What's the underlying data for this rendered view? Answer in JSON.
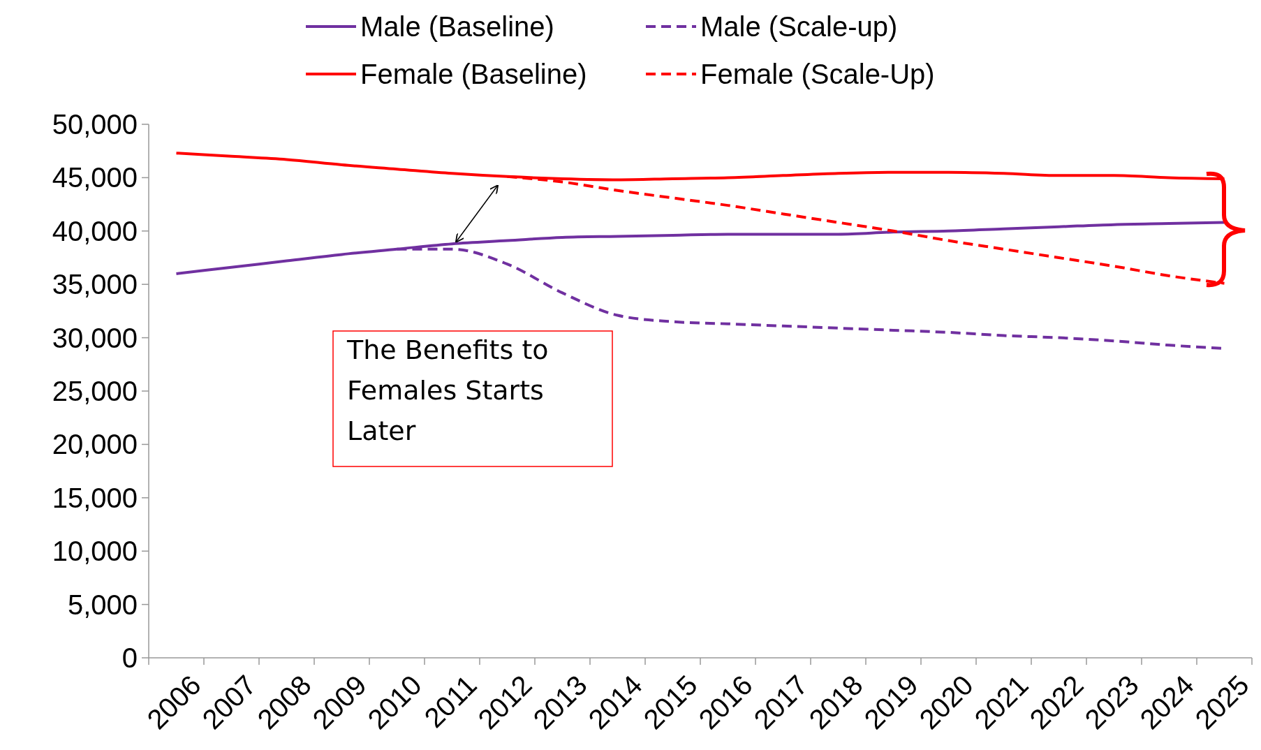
{
  "chart_data": {
    "type": "line",
    "categories": [
      "2006",
      "2007",
      "2008",
      "2009",
      "2010",
      "2011",
      "2012",
      "2013",
      "2014",
      "2015",
      "2016",
      "2017",
      "2018",
      "2019",
      "2020",
      "2021",
      "2022",
      "2023",
      "2024",
      "2025"
    ],
    "series": [
      {
        "name": "Male (Baseline)",
        "color": "#7030a0",
        "line_style": "solid",
        "values": [
          36000,
          36600,
          37200,
          37800,
          38300,
          38800,
          39100,
          39400,
          39500,
          39600,
          39700,
          39700,
          39700,
          39900,
          40000,
          40200,
          40400,
          40600,
          40700,
          40800
        ]
      },
      {
        "name": "Male (Scale-up)",
        "color": "#7030a0",
        "line_style": "dashed",
        "values": [
          null,
          null,
          null,
          null,
          38300,
          38300,
          36900,
          34200,
          32100,
          31500,
          31300,
          31100,
          30900,
          30700,
          30500,
          30200,
          30000,
          29700,
          29300,
          29000
        ]
      },
      {
        "name": "Female (Baseline)",
        "color": "#ff0000",
        "line_style": "solid",
        "values": [
          47300,
          47000,
          46700,
          46200,
          45800,
          45400,
          45100,
          44900,
          44800,
          44900,
          45000,
          45200,
          45400,
          45500,
          45500,
          45400,
          45200,
          45200,
          45000,
          44900
        ]
      },
      {
        "name": "Female (Scale-Up)",
        "color": "#ff0000",
        "line_style": "dashed",
        "values": [
          null,
          null,
          null,
          null,
          null,
          null,
          45100,
          44600,
          43800,
          43100,
          42400,
          41600,
          40800,
          40000,
          39100,
          38300,
          37500,
          36700,
          35800,
          35100
        ]
      }
    ],
    "ylim": [
      0,
      50000
    ],
    "yticks": [
      {
        "value": 0,
        "label": "0"
      },
      {
        "value": 5000,
        "label": "5,000"
      },
      {
        "value": 10000,
        "label": "10,000"
      },
      {
        "value": 15000,
        "label": "15,000"
      },
      {
        "value": 20000,
        "label": "20,000"
      },
      {
        "value": 25000,
        "label": "25,000"
      },
      {
        "value": 30000,
        "label": "30,000"
      },
      {
        "value": 35000,
        "label": "35,000"
      },
      {
        "value": 40000,
        "label": "40,000"
      },
      {
        "value": 45000,
        "label": "45,000"
      },
      {
        "value": 50000,
        "label": "50,000"
      }
    ],
    "grid": false,
    "legend": "top",
    "marker": "none",
    "annotations": [
      "The Benefits to Females Starts Later"
    ]
  }
}
